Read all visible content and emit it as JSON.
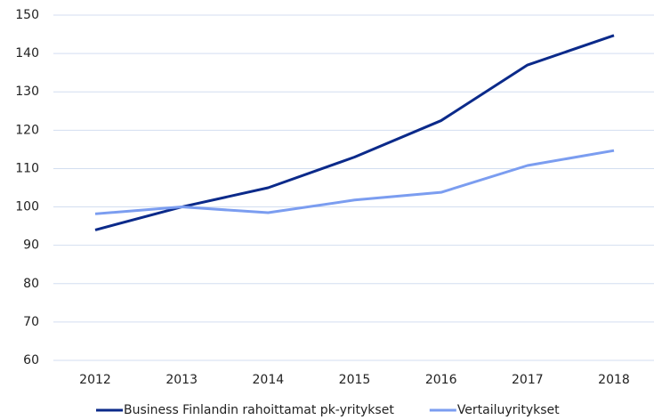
{
  "chart_data": {
    "type": "line",
    "categories": [
      "2012",
      "2013",
      "2014",
      "2015",
      "2016",
      "2017",
      "2018"
    ],
    "series": [
      {
        "name": "Business Finlandin rahoittamat pk-yritykset",
        "color": "#0b2a8a",
        "values": [
          94,
          100,
          105,
          113,
          122.5,
          137,
          144.7
        ]
      },
      {
        "name": "Vertailuyritykset",
        "color": "#7b9df0",
        "values": [
          98.2,
          100,
          98.5,
          101.8,
          103.8,
          110.8,
          114.7
        ]
      }
    ],
    "ylim": [
      60,
      150
    ],
    "yticks": [
      60,
      70,
      80,
      90,
      100,
      110,
      120,
      130,
      140,
      150
    ],
    "grid": true,
    "legend": "bottom"
  }
}
